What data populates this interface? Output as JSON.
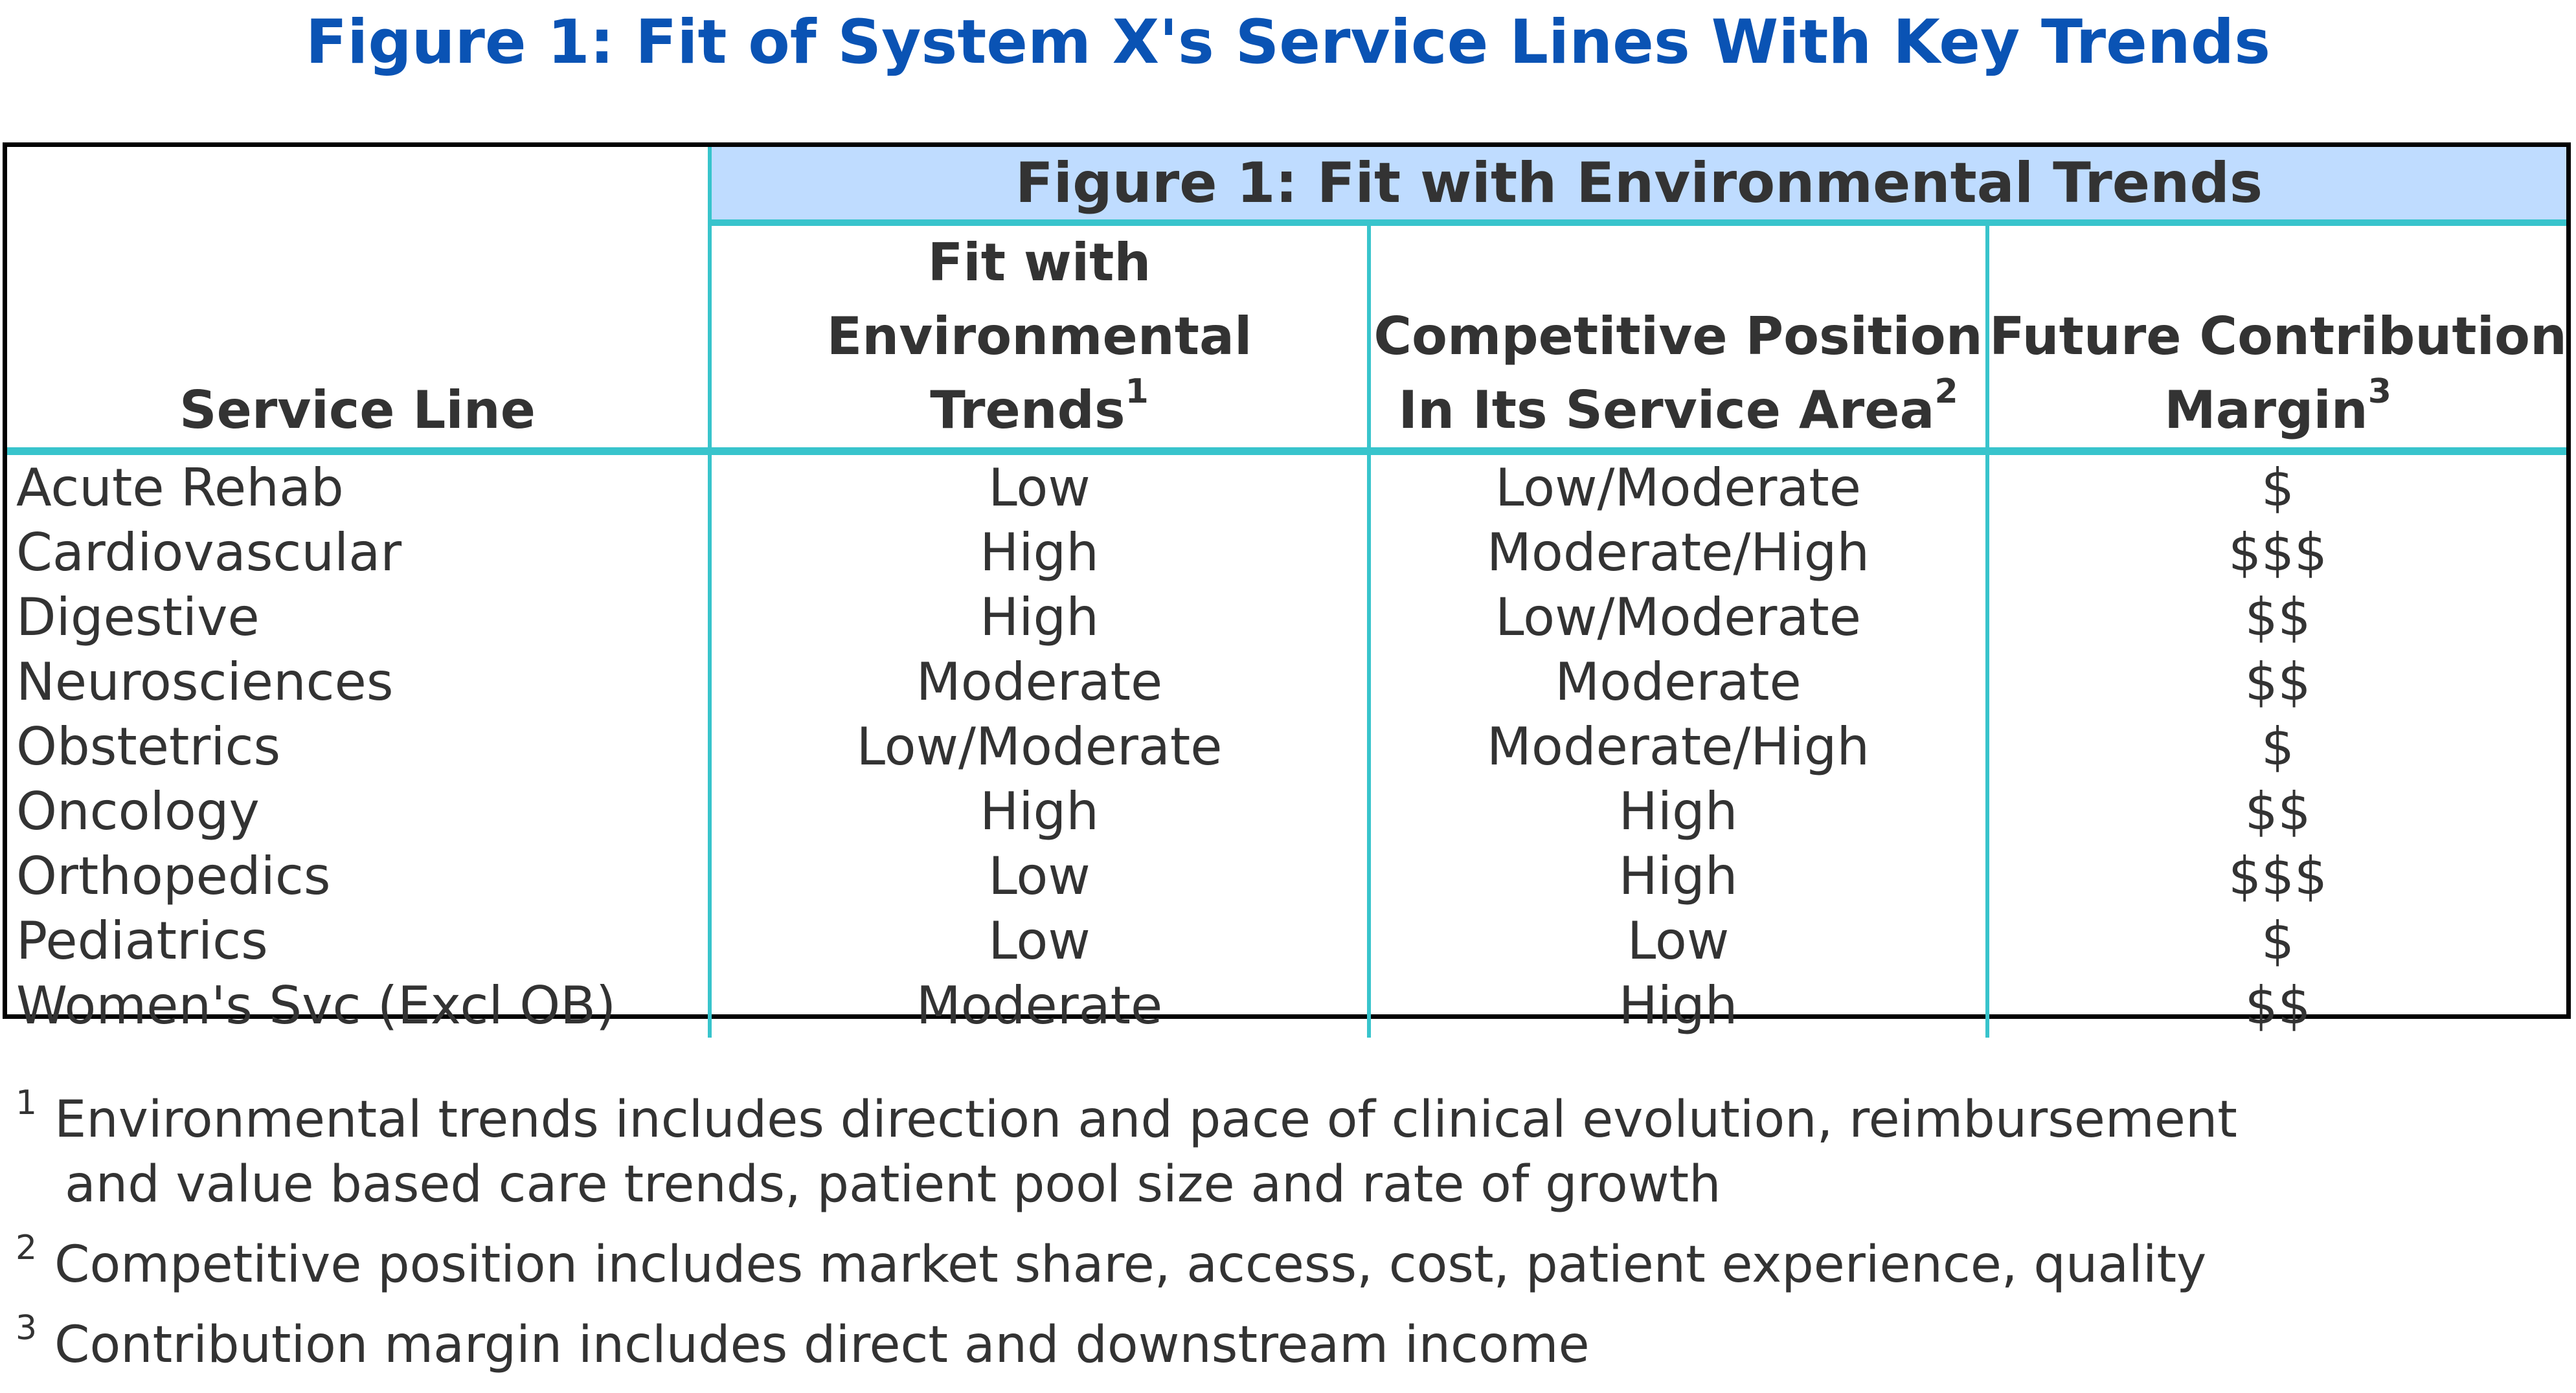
{
  "title": "Figure 1: Fit of System X's Service Lines With Key Trends",
  "colors": {
    "title": "#0a53b4",
    "group_header_background": "#bfdcff",
    "rule": "#38c4cc",
    "text": "#333333",
    "frame": "#000000"
  },
  "chart_data": {
    "type": "table",
    "title": "Figure 1: Fit of System X's Service Lines With Key Trends",
    "group_header": "Figure 1: Fit with Environmental Trends",
    "columns": [
      {
        "lines": [
          "Service Line"
        ],
        "footnote": ""
      },
      {
        "lines": [
          "Fit with",
          "Environmental",
          "Trends"
        ],
        "footnote": "1"
      },
      {
        "lines": [
          "Competitive Position",
          "In Its Service Area"
        ],
        "footnote": "2"
      },
      {
        "lines": [
          "Future Contribution",
          "Margin"
        ],
        "footnote": "3"
      }
    ],
    "rows": [
      [
        "Acute Rehab",
        "Low",
        "Low/Moderate",
        "$"
      ],
      [
        "Cardiovascular",
        "High",
        "Moderate/High",
        "$$$"
      ],
      [
        "Digestive",
        "High",
        "Low/Moderate",
        "$$"
      ],
      [
        "Neurosciences",
        "Moderate",
        "Moderate",
        "$$"
      ],
      [
        "Obstetrics",
        "Low/Moderate",
        "Moderate/High",
        "$"
      ],
      [
        "Oncology",
        "High",
        "High",
        "$$"
      ],
      [
        "Orthopedics",
        "Low",
        "High",
        "$$$"
      ],
      [
        "Pediatrics",
        "Low",
        "Low",
        "$"
      ],
      [
        "Women's Svc (Excl OB)",
        "Moderate",
        "High",
        "$$"
      ]
    ]
  },
  "footnotes": [
    {
      "marker": "1",
      "lines": [
        "Environmental trends includes direction and pace of clinical evolution, reimbursement",
        "and value based care trends, patient pool size and rate of growth"
      ]
    },
    {
      "marker": "2",
      "lines": [
        "Competitive position includes market share, access, cost, patient experience, quality"
      ]
    },
    {
      "marker": "3",
      "lines": [
        "Contribution margin includes direct and downstream income"
      ]
    }
  ]
}
